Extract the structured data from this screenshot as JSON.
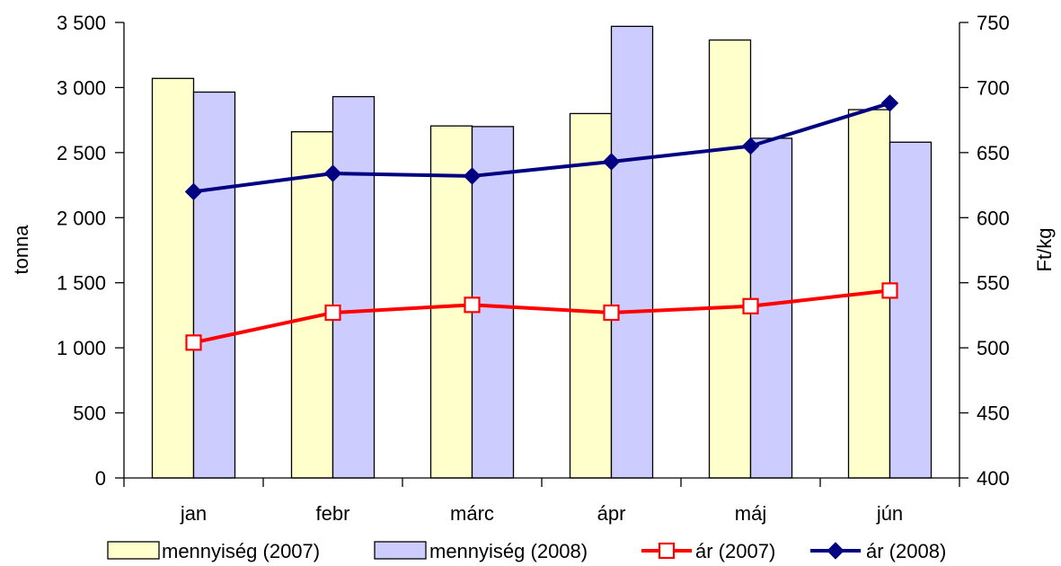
{
  "chart_data": {
    "type": "bar",
    "categories": [
      "jan",
      "febr",
      "márc",
      "ápr",
      "máj",
      "jún"
    ],
    "series": [
      {
        "name": "mennyiség (2007)",
        "kind": "bar",
        "axis": "left",
        "color": "#ffffcc",
        "values": [
          3070,
          2660,
          2705,
          2800,
          3365,
          2830
        ]
      },
      {
        "name": "mennyiség (2008)",
        "kind": "bar",
        "axis": "left",
        "color": "#ccccff",
        "values": [
          2965,
          2930,
          2700,
          3470,
          2610,
          2580
        ]
      },
      {
        "name": "ár (2007)",
        "kind": "line",
        "axis": "right",
        "color": "#ff0000",
        "marker": "open-square",
        "values": [
          504,
          527,
          533,
          527,
          532,
          544
        ]
      },
      {
        "name": "ár (2008)",
        "kind": "line",
        "axis": "right",
        "color": "#000080",
        "marker": "filled-diamond",
        "values": [
          620,
          634,
          632,
          643,
          655,
          688
        ]
      }
    ],
    "left_axis": {
      "label": "tonna",
      "min": 0,
      "max": 3500,
      "step": 500,
      "tick_labels": [
        "0",
        "500",
        "1 000",
        "1 500",
        "2 000",
        "2 500",
        "3 000",
        "3 500"
      ]
    },
    "right_axis": {
      "label": "Ft/kg",
      "min": 400,
      "max": 750,
      "step": 50,
      "tick_labels": [
        "400",
        "450",
        "500",
        "550",
        "600",
        "650",
        "700",
        "750"
      ]
    },
    "grid": false,
    "legend_position": "bottom"
  }
}
